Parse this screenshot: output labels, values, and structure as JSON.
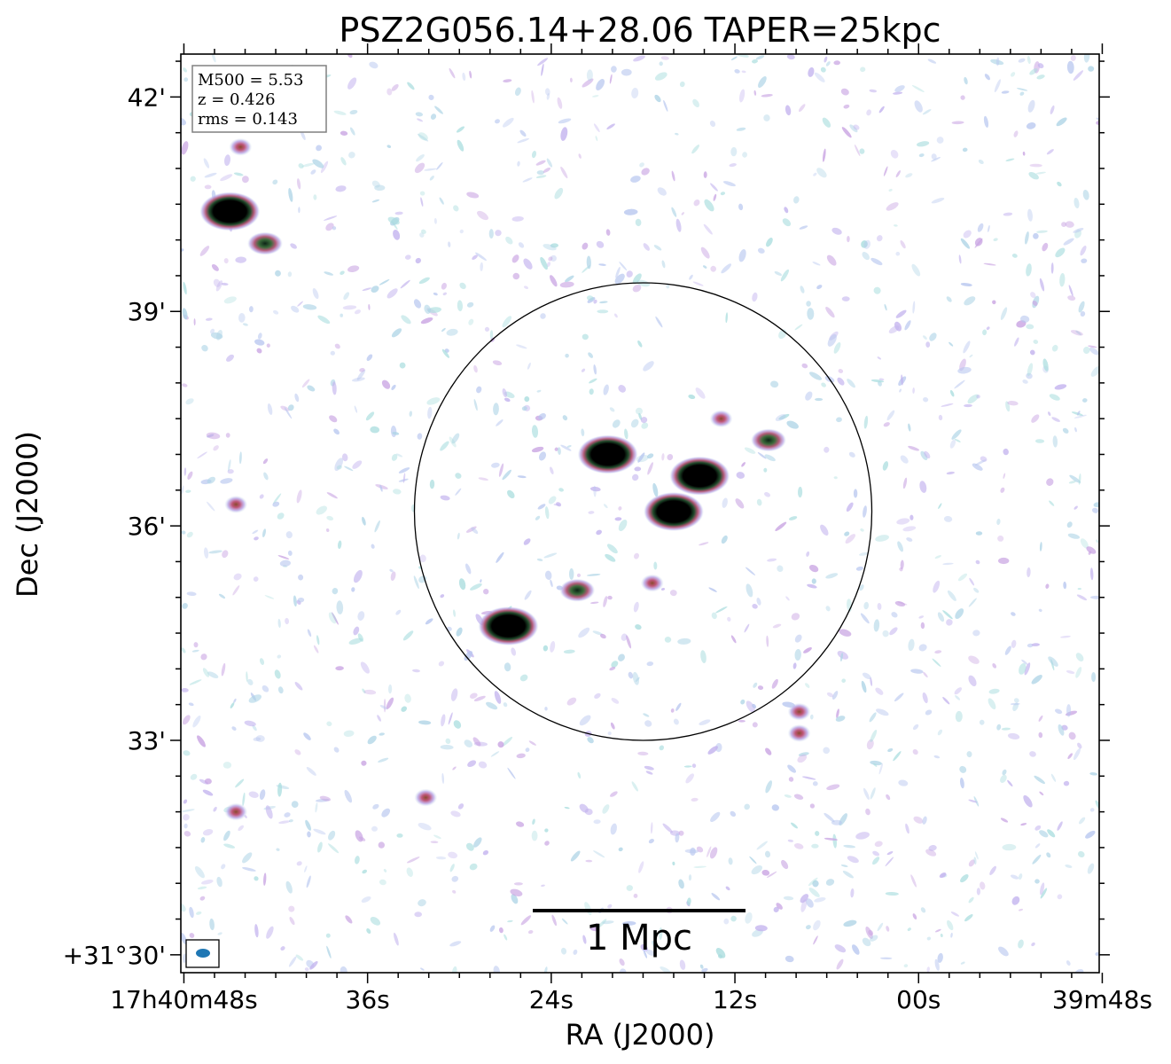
{
  "chart_data": {
    "type": "heatmap",
    "title": "PSZ2G056.14+28.06 TAPER=25kpc",
    "xlabel": "RA (J2000)",
    "ylabel": "Dec (J2000)",
    "x_ticks": [
      {
        "ra_sec": 48,
        "label": "17h40m48s"
      },
      {
        "ra_sec": 36,
        "label": "36s"
      },
      {
        "ra_sec": 24,
        "label": "24s"
      },
      {
        "ra_sec": 12,
        "label": "12s"
      },
      {
        "ra_sec": 0,
        "label": "00s"
      },
      {
        "ra_sec": -12,
        "label": "39m48s"
      }
    ],
    "y_ticks": [
      {
        "dec_arcmin": 30,
        "label": "+31°30'"
      },
      {
        "dec_arcmin": 33,
        "label": "33'"
      },
      {
        "dec_arcmin": 36,
        "label": "36'"
      },
      {
        "dec_arcmin": 39,
        "label": "39'"
      },
      {
        "dec_arcmin": 42,
        "label": "42'"
      }
    ],
    "xlim_ra_sec": [
      48.2,
      -11.8
    ],
    "ylim_dec_arcmin": [
      29.75,
      42.6
    ],
    "info_box": [
      "M500 = 5.53",
      "z = 0.426",
      "rms = 0.143"
    ],
    "scale_bar_label": "1 Mpc",
    "circle": {
      "center_ra_sec": 18.0,
      "center_dec_arcmin": 36.2,
      "radius_arcmin": 3.2
    },
    "sources": [
      {
        "ra_sec": 45.0,
        "dec_arcmin": 40.4,
        "intensity": "strong"
      },
      {
        "ra_sec": 42.7,
        "dec_arcmin": 39.95,
        "intensity": "medium"
      },
      {
        "ra_sec": 44.3,
        "dec_arcmin": 41.3,
        "intensity": "weak"
      },
      {
        "ra_sec": 44.6,
        "dec_arcmin": 36.3,
        "intensity": "weak"
      },
      {
        "ra_sec": 44.6,
        "dec_arcmin": 32.0,
        "intensity": "weak"
      },
      {
        "ra_sec": 32.2,
        "dec_arcmin": 32.2,
        "intensity": "weak"
      },
      {
        "ra_sec": 20.3,
        "dec_arcmin": 37.0,
        "intensity": "strong"
      },
      {
        "ra_sec": 16.0,
        "dec_arcmin": 36.2,
        "intensity": "strong"
      },
      {
        "ra_sec": 14.3,
        "dec_arcmin": 36.7,
        "intensity": "strong"
      },
      {
        "ra_sec": 26.8,
        "dec_arcmin": 34.6,
        "intensity": "strong"
      },
      {
        "ra_sec": 22.3,
        "dec_arcmin": 35.1,
        "intensity": "medium"
      },
      {
        "ra_sec": 17.4,
        "dec_arcmin": 35.2,
        "intensity": "weak"
      },
      {
        "ra_sec": 9.8,
        "dec_arcmin": 37.2,
        "intensity": "medium"
      },
      {
        "ra_sec": 12.9,
        "dec_arcmin": 37.5,
        "intensity": "weak"
      },
      {
        "ra_sec": 7.8,
        "dec_arcmin": 33.1,
        "intensity": "weak"
      },
      {
        "ra_sec": 7.8,
        "dec_arcmin": 33.4,
        "intensity": "weak"
      }
    ]
  }
}
